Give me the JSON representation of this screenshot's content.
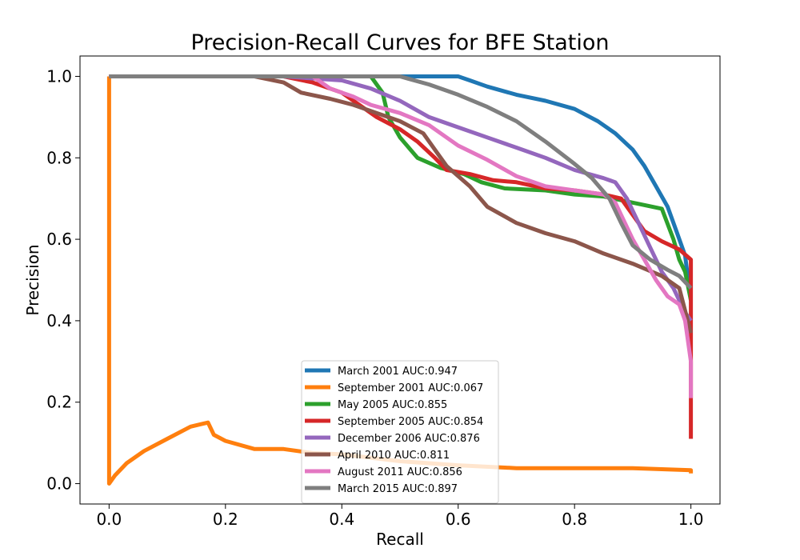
{
  "chart_data": {
    "type": "line",
    "title": "Precision-Recall Curves for BFE Station",
    "xlabel": "Recall",
    "ylabel": "Precision",
    "xlim": [
      -0.05,
      1.05
    ],
    "ylim": [
      -0.05,
      1.05
    ],
    "xticks": [
      "0.0",
      "0.2",
      "0.4",
      "0.6",
      "0.8",
      "1.0"
    ],
    "yticks": [
      "0.0",
      "0.2",
      "0.4",
      "0.6",
      "0.8",
      "1.0"
    ],
    "grid": false,
    "legend_position": "lower-center",
    "series": [
      {
        "name": "March 2001 AUC:0.947",
        "color": "#1f77b4",
        "points": [
          [
            0,
            1.0
          ],
          [
            0.5,
            1.0
          ],
          [
            0.6,
            1.0
          ],
          [
            0.62,
            0.99
          ],
          [
            0.65,
            0.975
          ],
          [
            0.7,
            0.955
          ],
          [
            0.75,
            0.94
          ],
          [
            0.8,
            0.92
          ],
          [
            0.84,
            0.89
          ],
          [
            0.87,
            0.86
          ],
          [
            0.9,
            0.82
          ],
          [
            0.92,
            0.78
          ],
          [
            0.94,
            0.73
          ],
          [
            0.96,
            0.68
          ],
          [
            0.975,
            0.62
          ],
          [
            0.99,
            0.56
          ],
          [
            1.0,
            0.45
          ]
        ]
      },
      {
        "name": "September 2001 AUC:0.067",
        "color": "#ff7f0e",
        "points": [
          [
            0,
            1.0
          ],
          [
            0,
            0.0
          ],
          [
            0.01,
            0.02
          ],
          [
            0.03,
            0.05
          ],
          [
            0.06,
            0.08
          ],
          [
            0.1,
            0.11
          ],
          [
            0.14,
            0.14
          ],
          [
            0.17,
            0.15
          ],
          [
            0.18,
            0.12
          ],
          [
            0.2,
            0.105
          ],
          [
            0.25,
            0.085
          ],
          [
            0.3,
            0.085
          ],
          [
            0.35,
            0.075
          ],
          [
            0.4,
            0.072
          ],
          [
            0.5,
            0.055
          ],
          [
            0.6,
            0.045
          ],
          [
            0.7,
            0.038
          ],
          [
            0.8,
            0.038
          ],
          [
            0.9,
            0.038
          ],
          [
            1.0,
            0.033
          ],
          [
            1.0,
            0.025
          ]
        ]
      },
      {
        "name": "May 2005 AUC:0.855",
        "color": "#2ca02c",
        "points": [
          [
            0,
            1.0
          ],
          [
            0.45,
            1.0
          ],
          [
            0.47,
            0.96
          ],
          [
            0.48,
            0.9
          ],
          [
            0.5,
            0.85
          ],
          [
            0.53,
            0.8
          ],
          [
            0.57,
            0.775
          ],
          [
            0.61,
            0.76
          ],
          [
            0.64,
            0.74
          ],
          [
            0.68,
            0.725
          ],
          [
            0.75,
            0.72
          ],
          [
            0.8,
            0.71
          ],
          [
            0.85,
            0.705
          ],
          [
            0.9,
            0.69
          ],
          [
            0.95,
            0.675
          ],
          [
            0.97,
            0.6
          ],
          [
            0.98,
            0.55
          ],
          [
            0.99,
            0.52
          ],
          [
            1.0,
            0.45
          ]
        ]
      },
      {
        "name": "September 2005 AUC:0.854",
        "color": "#d62728",
        "points": [
          [
            0,
            1.0
          ],
          [
            0.3,
            1.0
          ],
          [
            0.35,
            0.985
          ],
          [
            0.4,
            0.96
          ],
          [
            0.43,
            0.93
          ],
          [
            0.46,
            0.9
          ],
          [
            0.5,
            0.87
          ],
          [
            0.53,
            0.84
          ],
          [
            0.56,
            0.8
          ],
          [
            0.58,
            0.77
          ],
          [
            0.62,
            0.76
          ],
          [
            0.66,
            0.745
          ],
          [
            0.7,
            0.74
          ],
          [
            0.75,
            0.725
          ],
          [
            0.8,
            0.72
          ],
          [
            0.85,
            0.71
          ],
          [
            0.88,
            0.7
          ],
          [
            0.9,
            0.66
          ],
          [
            0.92,
            0.62
          ],
          [
            0.95,
            0.595
          ],
          [
            0.98,
            0.575
          ],
          [
            1.0,
            0.55
          ],
          [
            1.0,
            0.21
          ],
          [
            1.0,
            0.11
          ]
        ]
      },
      {
        "name": "December 2006 AUC:0.876",
        "color": "#9467bd",
        "points": [
          [
            0,
            1.0
          ],
          [
            0.3,
            1.0
          ],
          [
            0.4,
            0.99
          ],
          [
            0.45,
            0.97
          ],
          [
            0.5,
            0.94
          ],
          [
            0.55,
            0.9
          ],
          [
            0.6,
            0.875
          ],
          [
            0.65,
            0.85
          ],
          [
            0.7,
            0.825
          ],
          [
            0.75,
            0.8
          ],
          [
            0.8,
            0.77
          ],
          [
            0.85,
            0.75
          ],
          [
            0.87,
            0.74
          ],
          [
            0.89,
            0.7
          ],
          [
            0.91,
            0.64
          ],
          [
            0.93,
            0.58
          ],
          [
            0.95,
            0.52
          ],
          [
            0.97,
            0.48
          ],
          [
            0.99,
            0.42
          ],
          [
            1.0,
            0.4
          ]
        ]
      },
      {
        "name": "April 2010 AUC:0.811",
        "color": "#8c564b",
        "points": [
          [
            0,
            1.0
          ],
          [
            0.25,
            1.0
          ],
          [
            0.3,
            0.985
          ],
          [
            0.33,
            0.96
          ],
          [
            0.38,
            0.945
          ],
          [
            0.42,
            0.93
          ],
          [
            0.46,
            0.91
          ],
          [
            0.5,
            0.89
          ],
          [
            0.54,
            0.86
          ],
          [
            0.56,
            0.82
          ],
          [
            0.58,
            0.78
          ],
          [
            0.62,
            0.73
          ],
          [
            0.65,
            0.68
          ],
          [
            0.7,
            0.64
          ],
          [
            0.75,
            0.615
          ],
          [
            0.8,
            0.595
          ],
          [
            0.85,
            0.565
          ],
          [
            0.9,
            0.54
          ],
          [
            0.95,
            0.51
          ],
          [
            0.98,
            0.48
          ],
          [
            1.0,
            0.37
          ]
        ]
      },
      {
        "name": "August 2011 AUC:0.856",
        "color": "#e377c2",
        "points": [
          [
            0,
            1.0
          ],
          [
            0.35,
            1.0
          ],
          [
            0.38,
            0.97
          ],
          [
            0.42,
            0.95
          ],
          [
            0.45,
            0.93
          ],
          [
            0.5,
            0.91
          ],
          [
            0.55,
            0.88
          ],
          [
            0.6,
            0.83
          ],
          [
            0.65,
            0.795
          ],
          [
            0.7,
            0.755
          ],
          [
            0.75,
            0.73
          ],
          [
            0.8,
            0.72
          ],
          [
            0.85,
            0.71
          ],
          [
            0.87,
            0.69
          ],
          [
            0.89,
            0.63
          ],
          [
            0.9,
            0.6
          ],
          [
            0.92,
            0.55
          ],
          [
            0.94,
            0.5
          ],
          [
            0.96,
            0.46
          ],
          [
            0.98,
            0.44
          ],
          [
            0.99,
            0.4
          ],
          [
            1.0,
            0.3
          ],
          [
            1.0,
            0.21
          ]
        ]
      },
      {
        "name": "March 2015 AUC:0.897",
        "color": "#7f7f7f",
        "points": [
          [
            0,
            1.0
          ],
          [
            0.5,
            1.0
          ],
          [
            0.55,
            0.98
          ],
          [
            0.6,
            0.955
          ],
          [
            0.65,
            0.925
          ],
          [
            0.7,
            0.89
          ],
          [
            0.75,
            0.84
          ],
          [
            0.8,
            0.785
          ],
          [
            0.83,
            0.75
          ],
          [
            0.86,
            0.7
          ],
          [
            0.88,
            0.64
          ],
          [
            0.9,
            0.585
          ],
          [
            0.93,
            0.55
          ],
          [
            0.96,
            0.525
          ],
          [
            0.98,
            0.51
          ],
          [
            1.0,
            0.48
          ]
        ]
      }
    ]
  }
}
